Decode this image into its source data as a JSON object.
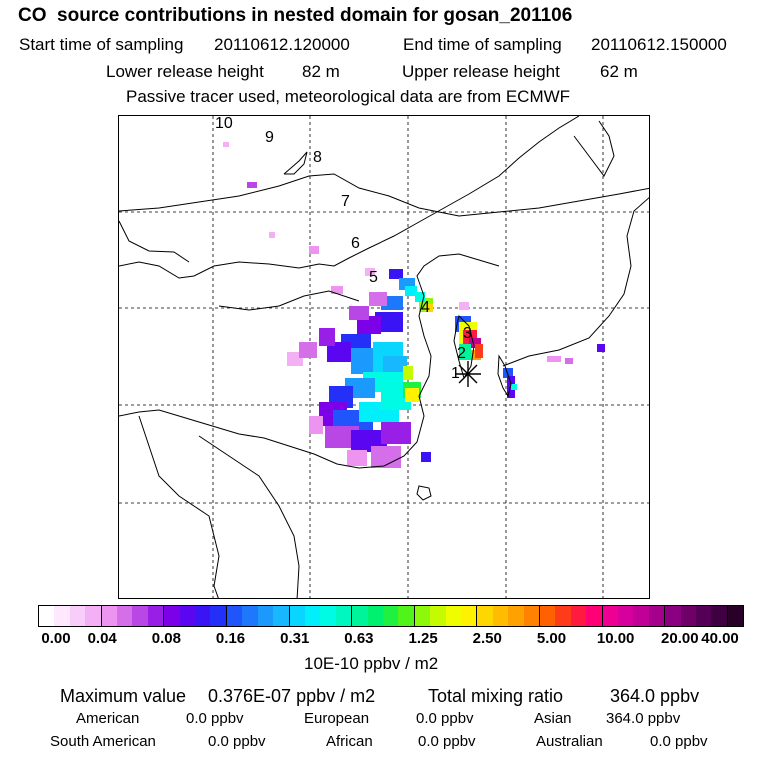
{
  "header": {
    "title": "CO  source contributions in nested domain for gosan_201106",
    "start_label": "Start time of sampling",
    "start_value": "20110612.120000",
    "end_label": "End time of sampling",
    "end_value": "20110612.150000",
    "lower_label": "Lower release height",
    "lower_value": "82 m",
    "upper_label": "Upper release height",
    "upper_value": "62 m",
    "note": "Passive tracer used, meteorological data are from ECMWF"
  },
  "chart_data": {
    "type": "heatmap",
    "title": "CO  source contributions in nested domain for gosan_201106",
    "map_region": "East Asia (China, Korea, Japan)",
    "receptor_label": "gosan",
    "trajectory_labels": [
      "1",
      "2",
      "3",
      "4",
      "5",
      "6",
      "7",
      "8",
      "9",
      "10"
    ],
    "colorbar": {
      "units": "10E-10 ppbv / m2",
      "tick_labels": [
        "0.00",
        "0.04",
        "0.08",
        "0.16",
        "0.31",
        "0.63",
        "1.25",
        "2.50",
        "5.00",
        "10.00",
        "20.00",
        "40.00"
      ],
      "tick_values": [
        0.0,
        0.04,
        0.08,
        0.16,
        0.31,
        0.63,
        1.25,
        2.5,
        5.0,
        10.0,
        20.0,
        40.0
      ],
      "colors": [
        "#ffffff",
        "#fde8fd",
        "#f9cdf9",
        "#f3b0f5",
        "#ec94f0",
        "#d46ee9",
        "#b847e6",
        "#9a1fe6",
        "#7c00e8",
        "#5b06f0",
        "#3a14f5",
        "#2430f7",
        "#1f55fa",
        "#1e78fb",
        "#1b99fd",
        "#18b8fe",
        "#0ad5fe",
        "#00effa",
        "#00fbe5",
        "#00f8c0",
        "#00f59a",
        "#00f070",
        "#20f040",
        "#50f41a",
        "#8cf80a",
        "#c4fb00",
        "#eefd00",
        "#fff200",
        "#ffd700",
        "#ffbc00",
        "#ffa100",
        "#ff8200",
        "#ff6000",
        "#ff3c1a",
        "#ff1a40",
        "#ff0077",
        "#ef0095",
        "#d8009c",
        "#c00096",
        "#a5008c",
        "#8a0080",
        "#6e0068",
        "#550056",
        "#3e0040",
        "#280028"
      ]
    },
    "stats": {
      "max_label": "Maximum value",
      "max_value": "0.376E-07 ppbv / m2",
      "total_label": "Total mixing ratio",
      "total_value": "364.0 ppbv",
      "american_label": "American",
      "american_value": "0.0 ppbv",
      "european_label": "European",
      "european_value": "0.0 ppbv",
      "asian_label": "Asian",
      "asian_value": "364.0 ppbv",
      "south_american_label": "South American",
      "south_american_value": "0.0 ppbv",
      "african_label": "African",
      "african_value": "0.0 ppbv",
      "australian_label": "Australian",
      "australian_value": "0.0 ppbv"
    }
  }
}
